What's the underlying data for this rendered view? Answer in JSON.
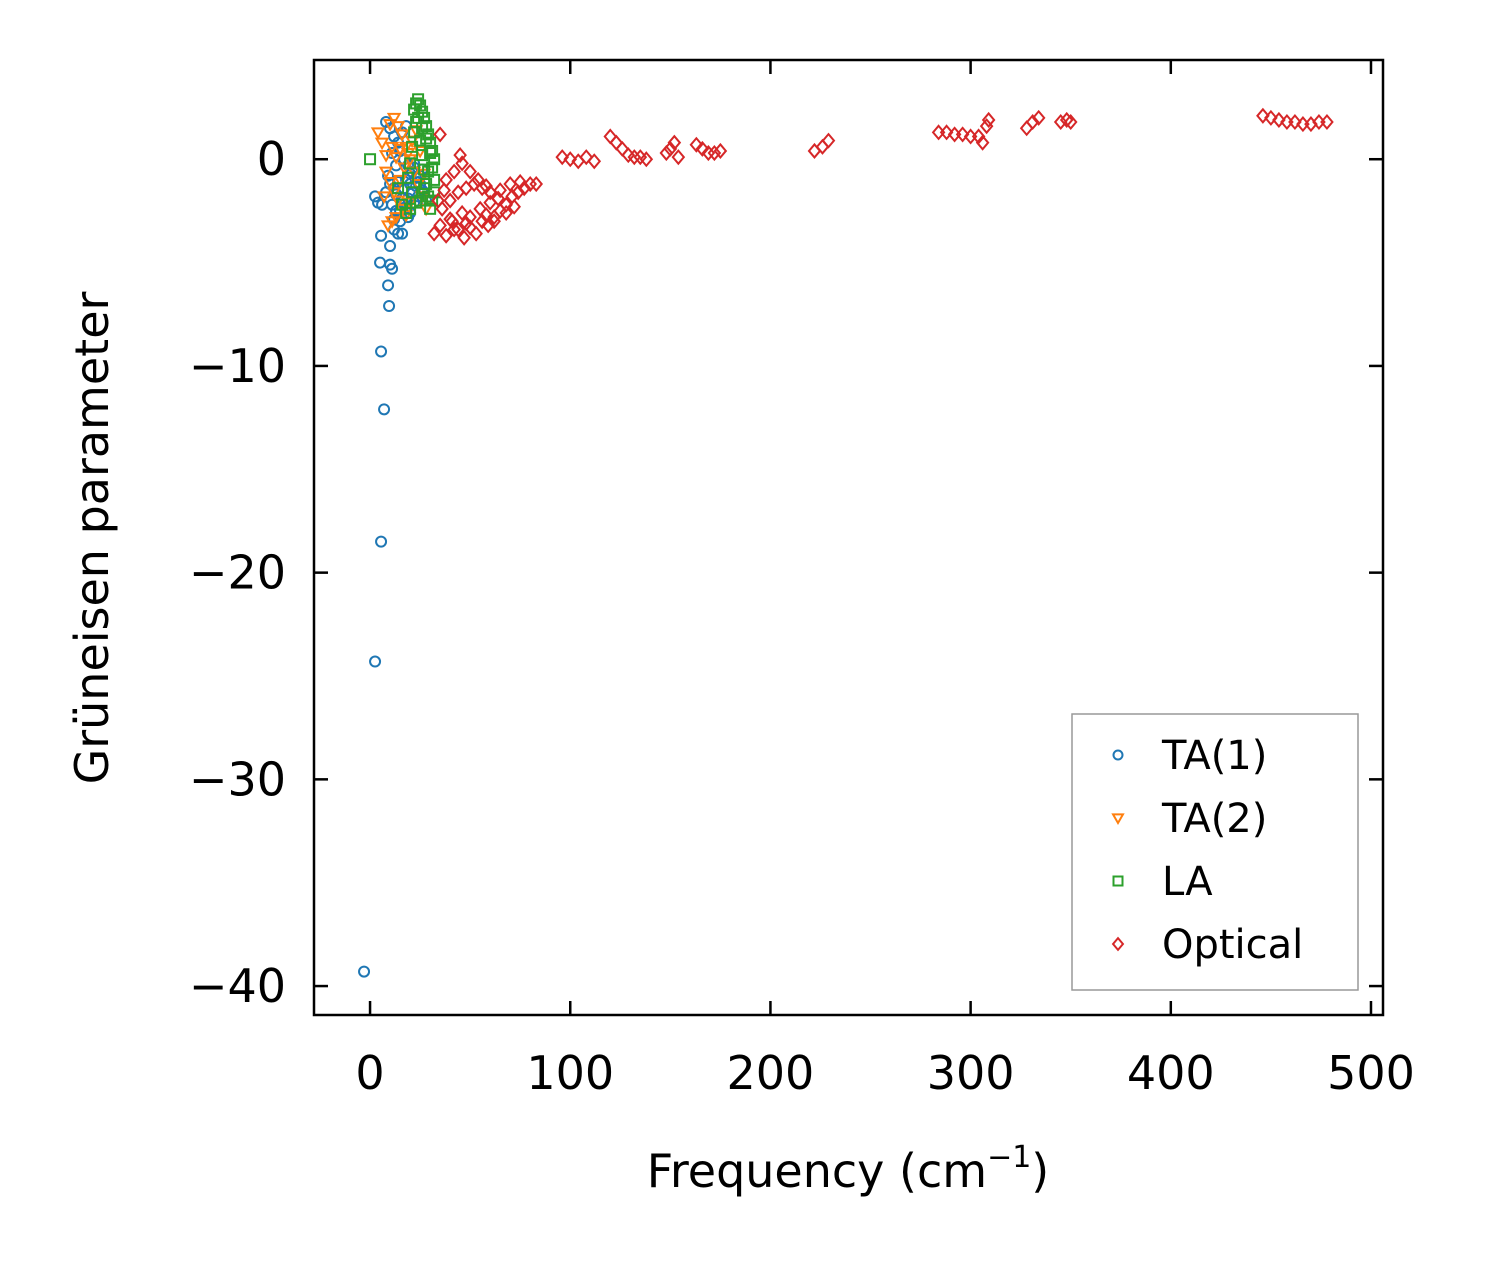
{
  "chart_data": {
    "type": "scatter",
    "title": "",
    "xlabel": "Frequency (cm",
    "xlabel_sup": "−1",
    "xlabel_end": ")",
    "ylabel": "Grüneisen parameter",
    "xlim": [
      -28,
      506
    ],
    "ylim": [
      -41.4,
      4.8
    ],
    "xticks": [
      0,
      100,
      200,
      300,
      400,
      500
    ],
    "xtick_labels": [
      "0",
      "100",
      "200",
      "300",
      "400",
      "500"
    ],
    "yticks": [
      0,
      -10,
      -20,
      -30,
      -40
    ],
    "ytick_labels": [
      "0",
      "−10",
      "−20",
      "−30",
      "−40"
    ],
    "legend_position": "lower-right",
    "series": [
      {
        "name": "TA(1)",
        "marker": "circle",
        "color": "#1f77b4",
        "points": [
          [
            -3,
            -39.3
          ],
          [
            2.5,
            -24.3
          ],
          [
            5.5,
            -18.5
          ],
          [
            7,
            -12.1
          ],
          [
            5.5,
            -9.3
          ],
          [
            9.5,
            -7.1
          ],
          [
            9,
            -6.1
          ],
          [
            5,
            -5
          ],
          [
            11,
            -5.3
          ],
          [
            10,
            -5.1
          ],
          [
            10,
            -4.2
          ],
          [
            5.5,
            -3.7
          ],
          [
            2.5,
            -1.8
          ],
          [
            4,
            -2.1
          ],
          [
            6,
            -2.2
          ],
          [
            8,
            -1.6
          ],
          [
            12,
            -3.4
          ],
          [
            14,
            -3.6
          ],
          [
            16,
            -3.6
          ],
          [
            12,
            -2.9
          ],
          [
            15,
            -2.5
          ],
          [
            17,
            -2.2
          ],
          [
            19,
            -1.9
          ],
          [
            21,
            -1.6
          ],
          [
            23,
            -1.3
          ],
          [
            18,
            -1.0
          ],
          [
            20,
            -0.7
          ],
          [
            22,
            -0.4
          ],
          [
            24,
            -1.1
          ],
          [
            26,
            -1.5
          ],
          [
            28,
            -2.0
          ],
          [
            25,
            -0.8
          ],
          [
            13,
            -0.3
          ],
          [
            11,
            0.3
          ],
          [
            14,
            0.8
          ],
          [
            16,
            1.3
          ],
          [
            18,
            1.6
          ],
          [
            8,
            1.8
          ],
          [
            10,
            1.5
          ],
          [
            12,
            1.1
          ],
          [
            15,
            0.4
          ],
          [
            17,
            0.0
          ],
          [
            19,
            -0.3
          ],
          [
            21,
            -0.6
          ],
          [
            23,
            -0.9
          ],
          [
            25,
            -1.2
          ],
          [
            27,
            -1.6
          ],
          [
            13,
            -1.7
          ],
          [
            16,
            -1.9
          ],
          [
            18,
            -2.3
          ],
          [
            20,
            -2.6
          ],
          [
            22,
            -2.1
          ],
          [
            24,
            -1.8
          ],
          [
            26,
            -0.5
          ],
          [
            10,
            -1.2
          ],
          [
            12,
            -1.4
          ],
          [
            14,
            -1.1
          ],
          [
            17,
            -1.4
          ],
          [
            20,
            -1.2
          ],
          [
            22,
            -0.2
          ],
          [
            9,
            -0.8
          ],
          [
            11,
            -2.2
          ],
          [
            13,
            -2.5
          ],
          [
            15,
            -3.0
          ],
          [
            19,
            -2.8
          ]
        ]
      },
      {
        "name": "TA(2)",
        "marker": "triangle-down",
        "color": "#ff7f0e",
        "points": [
          [
            4,
            1.3
          ],
          [
            6,
            0.8
          ],
          [
            8,
            0.2
          ],
          [
            10,
            1.7
          ],
          [
            12,
            2.0
          ],
          [
            14,
            1.6
          ],
          [
            16,
            1.2
          ],
          [
            18,
            0.6
          ],
          [
            20,
            0.0
          ],
          [
            22,
            -0.6
          ],
          [
            24,
            -1.2
          ],
          [
            26,
            -1.8
          ],
          [
            28,
            -2.4
          ],
          [
            30,
            -2.0
          ],
          [
            8,
            -0.6
          ],
          [
            10,
            -1.1
          ],
          [
            12,
            -1.6
          ],
          [
            14,
            -2.0
          ],
          [
            16,
            -2.4
          ],
          [
            18,
            -2.7
          ],
          [
            20,
            -2.1
          ],
          [
            9,
            -3.2
          ],
          [
            11,
            -3.0
          ],
          [
            13,
            -2.8
          ],
          [
            7,
            -1.8
          ],
          [
            15,
            -1.0
          ],
          [
            17,
            -0.4
          ],
          [
            19,
            0.3
          ],
          [
            21,
            0.9
          ],
          [
            23,
            1.4
          ],
          [
            25,
            0.4
          ],
          [
            27,
            -0.7
          ],
          [
            11,
            0.6
          ],
          [
            13,
            0.1
          ],
          [
            15,
            0.5
          ]
        ]
      },
      {
        "name": "LA",
        "marker": "square",
        "color": "#2ca02c",
        "points": [
          [
            0,
            0.0
          ],
          [
            14,
            -1.4
          ],
          [
            16,
            -2.2
          ],
          [
            18,
            -2.6
          ],
          [
            20,
            -2.4
          ],
          [
            22,
            2.4
          ],
          [
            23,
            2.7
          ],
          [
            24,
            2.9
          ],
          [
            25,
            2.6
          ],
          [
            26,
            2.3
          ],
          [
            27,
            2.0
          ],
          [
            28,
            1.6
          ],
          [
            29,
            1.2
          ],
          [
            30,
            0.8
          ],
          [
            31,
            0.4
          ],
          [
            32,
            0.0
          ],
          [
            24,
            2.0
          ],
          [
            26,
            1.5
          ],
          [
            28,
            1.0
          ],
          [
            30,
            0.3
          ],
          [
            31,
            -0.4
          ],
          [
            32,
            -1.0
          ],
          [
            32,
            -1.6
          ],
          [
            31,
            -2.0
          ],
          [
            30,
            -2.4
          ],
          [
            29,
            -1.8
          ],
          [
            28,
            -1.2
          ],
          [
            27,
            -0.5
          ],
          [
            26,
            0.2
          ],
          [
            25,
            0.9
          ],
          [
            23,
            1.8
          ],
          [
            22,
            1.3
          ],
          [
            21,
            0.6
          ],
          [
            20,
            -0.2
          ],
          [
            19,
            -0.9
          ],
          [
            21,
            -1.6
          ],
          [
            23,
            -2.1
          ],
          [
            25,
            -2.0
          ],
          [
            27,
            -1.4
          ],
          [
            29,
            -0.6
          ]
        ]
      },
      {
        "name": "Optical",
        "marker": "diamond",
        "color": "#d62728",
        "points": [
          [
            32,
            -3.6
          ],
          [
            35,
            -3.2
          ],
          [
            38,
            -3.7
          ],
          [
            41,
            -3.0
          ],
          [
            44,
            -3.4
          ],
          [
            47,
            -3.8
          ],
          [
            50,
            -3.3
          ],
          [
            53,
            -3.6
          ],
          [
            56,
            -3.0
          ],
          [
            59,
            -3.2
          ],
          [
            62,
            -2.8
          ],
          [
            65,
            -2.5
          ],
          [
            68,
            -2.2
          ],
          [
            71,
            -1.8
          ],
          [
            74,
            -1.6
          ],
          [
            77,
            -1.4
          ],
          [
            80,
            -1.2
          ],
          [
            83,
            -1.2
          ],
          [
            36,
            -2.4
          ],
          [
            40,
            -2.0
          ],
          [
            44,
            -1.6
          ],
          [
            48,
            -1.4
          ],
          [
            52,
            -1.2
          ],
          [
            56,
            -1.4
          ],
          [
            60,
            -1.6
          ],
          [
            64,
            -1.9
          ],
          [
            68,
            -2.6
          ],
          [
            72,
            -2.3
          ],
          [
            38,
            -1.0
          ],
          [
            42,
            -0.6
          ],
          [
            46,
            -0.2
          ],
          [
            50,
            -0.6
          ],
          [
            54,
            -1.0
          ],
          [
            58,
            -1.3
          ],
          [
            35,
            1.2
          ],
          [
            45,
            0.2
          ],
          [
            46,
            -2.6
          ],
          [
            50,
            -2.8
          ],
          [
            55,
            -2.4
          ],
          [
            60,
            -2.1
          ],
          [
            65,
            -1.5
          ],
          [
            70,
            -1.2
          ],
          [
            75,
            -1.1
          ],
          [
            40,
            -2.9
          ],
          [
            34,
            -2.0
          ],
          [
            37,
            -1.5
          ],
          [
            42,
            -3.4
          ],
          [
            48,
            -3.1
          ],
          [
            58,
            -2.7
          ],
          [
            62,
            -3.0
          ],
          [
            96,
            0.1
          ],
          [
            100,
            0.0
          ],
          [
            104,
            -0.1
          ],
          [
            108,
            0.1
          ],
          [
            112,
            -0.1
          ],
          [
            120,
            1.1
          ],
          [
            123,
            0.8
          ],
          [
            126,
            0.5
          ],
          [
            129,
            0.2
          ],
          [
            132,
            0.1
          ],
          [
            135,
            0.1
          ],
          [
            138,
            0.0
          ],
          [
            148,
            0.3
          ],
          [
            150,
            0.5
          ],
          [
            152,
            0.8
          ],
          [
            154,
            0.1
          ],
          [
            163,
            0.7
          ],
          [
            166,
            0.5
          ],
          [
            169,
            0.3
          ],
          [
            172,
            0.3
          ],
          [
            175,
            0.4
          ],
          [
            222,
            0.4
          ],
          [
            226,
            0.6
          ],
          [
            229,
            0.9
          ],
          [
            284,
            1.3
          ],
          [
            288,
            1.3
          ],
          [
            292,
            1.2
          ],
          [
            296,
            1.2
          ],
          [
            300,
            1.1
          ],
          [
            304,
            1.1
          ],
          [
            306,
            0.8
          ],
          [
            308,
            1.6
          ],
          [
            309,
            1.9
          ],
          [
            328,
            1.5
          ],
          [
            331,
            1.8
          ],
          [
            334,
            2.0
          ],
          [
            345,
            1.8
          ],
          [
            348,
            1.9
          ],
          [
            350,
            1.8
          ],
          [
            446,
            2.1
          ],
          [
            450,
            2.0
          ],
          [
            454,
            1.9
          ],
          [
            458,
            1.8
          ],
          [
            462,
            1.8
          ],
          [
            466,
            1.7
          ],
          [
            470,
            1.7
          ],
          [
            474,
            1.8
          ],
          [
            478,
            1.8
          ]
        ]
      }
    ]
  }
}
